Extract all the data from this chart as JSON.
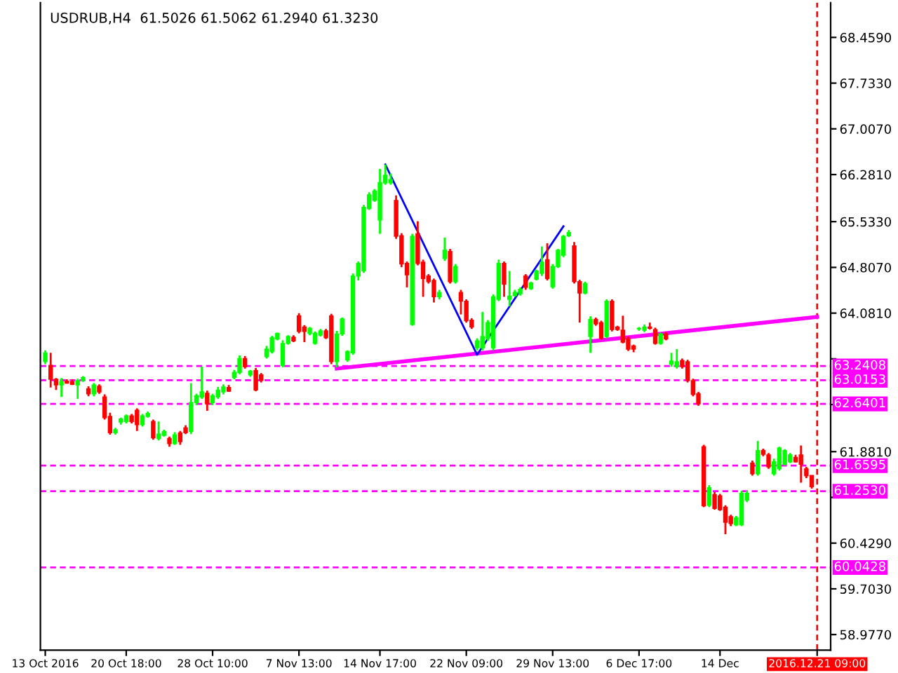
{
  "chart_data": {
    "type": "candlestick",
    "title": "USDRUB,H4  61.5026 61.5062 61.2940 61.3230",
    "categories": [
      "13 Oct 2016",
      null,
      null,
      null,
      null,
      null,
      null,
      null,
      null,
      null,
      null,
      null,
      null,
      null,
      null,
      "20 Oct 18:00",
      null,
      null,
      null,
      null,
      null,
      null,
      null,
      null,
      null,
      null,
      null,
      null,
      null,
      null,
      null,
      "28 Oct 10:00",
      null,
      null,
      null,
      null,
      null,
      null,
      null,
      null,
      null,
      null,
      null,
      null,
      null,
      null,
      null,
      "7 Nov 13:00",
      null,
      null,
      null,
      null,
      null,
      null,
      null,
      null,
      null,
      null,
      null,
      null,
      null,
      null,
      "14 Nov 17:00",
      null,
      null,
      null,
      null,
      null,
      null,
      null,
      null,
      null,
      null,
      null,
      null,
      null,
      null,
      null,
      "22 Nov 09:00",
      null,
      null,
      null,
      null,
      null,
      null,
      null,
      null,
      null,
      null,
      null,
      null,
      null,
      null,
      null,
      "29 Nov 13:00",
      null,
      null,
      null,
      null,
      null,
      null,
      null,
      null,
      null,
      null,
      null,
      null,
      null,
      null,
      null,
      "6 Dec 17:00",
      null,
      null,
      null,
      null,
      null,
      null,
      null,
      null,
      null,
      null,
      null,
      null,
      null,
      null,
      "14 Dec",
      null,
      null,
      null,
      null,
      null,
      null,
      null,
      null,
      null,
      null,
      null,
      null,
      null,
      null,
      null,
      null,
      null,
      "2016.12.21 09:00"
    ],
    "ohlc": [
      [
        63.31,
        63.49,
        63.27,
        63.45
      ],
      [
        63.25,
        63.45,
        62.9,
        63.03
      ],
      [
        63.03,
        63.05,
        62.86,
        62.94
      ],
      [
        62.94,
        63.05,
        62.75,
        62.99
      ],
      [
        63.0,
        63.03,
        62.96,
        62.97
      ],
      [
        62.99,
        63.03,
        62.94,
        62.95
      ],
      [
        62.94,
        63.04,
        62.72,
        63.01
      ],
      [
        63.01,
        63.08,
        62.99,
        63.06
      ],
      [
        62.88,
        62.92,
        62.76,
        62.8
      ],
      [
        62.8,
        62.97,
        62.76,
        62.94
      ],
      [
        62.92,
        62.95,
        62.8,
        62.83
      ],
      [
        62.75,
        62.79,
        62.39,
        62.42
      ],
      [
        62.44,
        62.5,
        62.15,
        62.18
      ],
      [
        62.18,
        62.26,
        62.15,
        62.23
      ],
      [
        62.35,
        62.42,
        62.31,
        62.4
      ],
      [
        62.36,
        62.47,
        62.33,
        62.45
      ],
      [
        62.45,
        62.48,
        62.33,
        62.36
      ],
      [
        62.54,
        62.57,
        62.21,
        62.31
      ],
      [
        62.31,
        62.48,
        62.28,
        62.45
      ],
      [
        62.44,
        62.52,
        62.42,
        62.49
      ],
      [
        62.36,
        62.39,
        62.07,
        62.1
      ],
      [
        62.09,
        62.36,
        62.06,
        62.16
      ],
      [
        62.14,
        62.23,
        62.12,
        62.2
      ],
      [
        62.09,
        62.12,
        61.96,
        62.01
      ],
      [
        62.01,
        62.19,
        61.99,
        62.15
      ],
      [
        62.18,
        62.21,
        61.99,
        62.04
      ],
      [
        62.26,
        62.3,
        62.16,
        62.18
      ],
      [
        62.2,
        62.97,
        62.16,
        62.66
      ],
      [
        62.66,
        62.8,
        62.62,
        62.77
      ],
      [
        62.75,
        63.23,
        62.72,
        62.83
      ],
      [
        62.81,
        62.85,
        62.53,
        62.64
      ],
      [
        62.66,
        62.8,
        62.62,
        62.77
      ],
      [
        62.75,
        62.91,
        62.72,
        62.86
      ],
      [
        62.83,
        62.95,
        62.79,
        62.91
      ],
      [
        62.9,
        62.94,
        62.83,
        62.84
      ],
      [
        63.06,
        63.18,
        63.03,
        63.14
      ],
      [
        63.14,
        63.41,
        63.11,
        63.36
      ],
      [
        63.36,
        63.4,
        63.2,
        63.23
      ],
      [
        63.1,
        63.18,
        63.07,
        63.16
      ],
      [
        63.17,
        63.21,
        62.84,
        62.86
      ],
      [
        63.1,
        63.13,
        62.98,
        63.01
      ],
      [
        63.39,
        63.56,
        63.36,
        63.51
      ],
      [
        63.47,
        63.72,
        63.44,
        63.69
      ],
      [
        63.67,
        63.77,
        63.65,
        63.76
      ],
      [
        63.25,
        63.65,
        63.22,
        63.6
      ],
      [
        63.6,
        63.73,
        63.58,
        63.71
      ],
      [
        63.7,
        63.73,
        63.62,
        63.64
      ],
      [
        64.04,
        64.08,
        63.76,
        63.79
      ],
      [
        63.86,
        63.89,
        63.62,
        63.79
      ],
      [
        63.76,
        63.86,
        63.73,
        63.84
      ],
      [
        63.6,
        63.79,
        63.58,
        63.76
      ],
      [
        63.73,
        63.83,
        63.71,
        63.8
      ],
      [
        63.8,
        63.83,
        63.67,
        63.69
      ],
      [
        64.04,
        64.07,
        63.27,
        63.31
      ],
      [
        63.31,
        63.8,
        63.22,
        63.75
      ],
      [
        63.75,
        64.01,
        63.72,
        63.99
      ],
      [
        63.34,
        63.49,
        63.31,
        63.47
      ],
      [
        63.45,
        64.71,
        63.42,
        64.67
      ],
      [
        64.67,
        64.9,
        64.6,
        64.87
      ],
      [
        64.75,
        65.8,
        64.72,
        65.76
      ],
      [
        65.74,
        66.0,
        65.72,
        65.96
      ],
      [
        65.87,
        66.05,
        65.85,
        66.02
      ],
      [
        65.56,
        66.37,
        65.34,
        66.15
      ],
      [
        66.15,
        66.44,
        66.12,
        66.27
      ],
      [
        66.15,
        66.3,
        66.12,
        66.2
      ],
      [
        65.87,
        65.95,
        65.26,
        65.3
      ],
      [
        65.31,
        65.35,
        64.81,
        64.86
      ],
      [
        64.87,
        64.9,
        64.49,
        64.69
      ],
      [
        63.9,
        65.34,
        63.88,
        65.3
      ],
      [
        65.34,
        65.54,
        64.84,
        64.87
      ],
      [
        64.89,
        64.93,
        64.34,
        64.63
      ],
      [
        64.67,
        64.7,
        64.55,
        64.58
      ],
      [
        64.6,
        64.63,
        64.25,
        64.34
      ],
      [
        64.34,
        64.45,
        64.3,
        64.41
      ],
      [
        64.95,
        65.28,
        64.91,
        65.08
      ],
      [
        65.06,
        65.1,
        64.55,
        64.58
      ],
      [
        64.58,
        64.86,
        64.55,
        64.82
      ],
      [
        64.41,
        64.45,
        64.06,
        64.27
      ],
      [
        64.27,
        64.3,
        63.93,
        63.96
      ],
      [
        63.97,
        64.0,
        63.83,
        63.86
      ],
      [
        63.53,
        63.68,
        63.49,
        63.64
      ],
      [
        63.53,
        64.1,
        63.49,
        63.71
      ],
      [
        63.68,
        63.97,
        63.64,
        63.93
      ],
      [
        63.53,
        64.38,
        63.49,
        64.34
      ],
      [
        64.3,
        64.93,
        64.27,
        64.87
      ],
      [
        64.87,
        64.9,
        64.34,
        64.54
      ],
      [
        64.3,
        64.75,
        64.19,
        64.35
      ],
      [
        64.36,
        64.45,
        64.34,
        64.41
      ],
      [
        64.39,
        64.49,
        64.36,
        64.46
      ],
      [
        64.67,
        64.7,
        64.45,
        64.49
      ],
      [
        64.47,
        64.58,
        64.45,
        64.56
      ],
      [
        64.62,
        64.77,
        64.6,
        64.75
      ],
      [
        64.71,
        65.14,
        64.67,
        64.89
      ],
      [
        64.93,
        65.19,
        64.6,
        64.63
      ],
      [
        64.5,
        64.86,
        64.47,
        64.82
      ],
      [
        64.82,
        65.1,
        64.8,
        65.08
      ],
      [
        65.0,
        65.32,
        64.97,
        65.3
      ],
      [
        65.31,
        65.4,
        65.29,
        65.36
      ],
      [
        65.15,
        65.21,
        64.55,
        64.58
      ],
      [
        64.58,
        64.61,
        63.93,
        64.4
      ],
      [
        64.4,
        64.58,
        64.38,
        64.55
      ],
      [
        63.71,
        64.03,
        63.45,
        63.98
      ],
      [
        63.98,
        64.01,
        63.88,
        63.91
      ],
      [
        63.93,
        63.96,
        63.66,
        63.68
      ],
      [
        63.71,
        64.3,
        63.68,
        64.27
      ],
      [
        64.27,
        64.3,
        63.79,
        63.82
      ],
      [
        63.86,
        63.88,
        63.8,
        63.82
      ],
      [
        63.81,
        64.04,
        63.6,
        63.62
      ],
      [
        63.67,
        63.71,
        63.48,
        63.51
      ],
      [
        63.56,
        63.58,
        63.46,
        63.51
      ],
      [
        63.83,
        63.86,
        63.8,
        63.84
      ],
      [
        63.81,
        63.9,
        63.78,
        63.86
      ],
      [
        63.86,
        63.93,
        63.82,
        63.84
      ],
      [
        63.82,
        63.85,
        63.58,
        63.6
      ],
      [
        63.6,
        63.77,
        63.58,
        63.75
      ],
      [
        63.75,
        63.78,
        63.65,
        63.67
      ],
      [
        63.27,
        63.45,
        63.23,
        63.32
      ],
      [
        63.23,
        63.51,
        63.2,
        63.31
      ],
      [
        63.33,
        63.36,
        63.2,
        63.23
      ],
      [
        63.31,
        63.34,
        62.98,
        63.01
      ],
      [
        63.01,
        63.04,
        62.76,
        62.79
      ],
      [
        62.8,
        62.83,
        62.61,
        62.64
      ],
      [
        61.96,
        61.99,
        61.0,
        61.02
      ],
      [
        61.03,
        61.35,
        61.0,
        61.31
      ],
      [
        61.2,
        61.24,
        60.96,
        60.98
      ],
      [
        61.18,
        61.21,
        60.94,
        60.96
      ],
      [
        61.0,
        61.03,
        60.57,
        60.76
      ],
      [
        60.85,
        60.88,
        60.7,
        60.74
      ],
      [
        60.72,
        60.86,
        60.7,
        60.83
      ],
      [
        60.72,
        61.26,
        60.7,
        61.22
      ],
      [
        61.11,
        61.26,
        61.08,
        61.22
      ],
      [
        61.7,
        61.74,
        61.5,
        61.53
      ],
      [
        61.53,
        62.05,
        61.5,
        61.9
      ],
      [
        61.9,
        61.93,
        61.81,
        61.84
      ],
      [
        61.83,
        61.86,
        61.61,
        61.64
      ],
      [
        61.53,
        61.77,
        61.5,
        61.72
      ],
      [
        61.61,
        61.96,
        61.58,
        61.94
      ],
      [
        61.68,
        61.92,
        61.66,
        61.9
      ],
      [
        61.72,
        61.86,
        61.7,
        61.83
      ],
      [
        61.79,
        61.83,
        61.71,
        61.72
      ],
      [
        61.83,
        61.98,
        61.39,
        61.68
      ],
      [
        61.61,
        61.64,
        61.46,
        61.5
      ],
      [
        61.5026,
        61.5062,
        61.294,
        61.323
      ],
      null
    ],
    "series": [
      {
        "type": "line",
        "color": "#ff00ff",
        "values": [
          null,
          null,
          null,
          null,
          null,
          null,
          null,
          null,
          null,
          null,
          null,
          null,
          null,
          null,
          null,
          null,
          null,
          null,
          null,
          null,
          null,
          null,
          null,
          null,
          null,
          null,
          null,
          null,
          null,
          null,
          null,
          null,
          null,
          null,
          null,
          null,
          null,
          null,
          null,
          null,
          null,
          null,
          null,
          null,
          null,
          null,
          null,
          null,
          null,
          null,
          null,
          null,
          null,
          null,
          63.2,
          null,
          null,
          null,
          null,
          null,
          null,
          null,
          null,
          null,
          null,
          null,
          null,
          null,
          null,
          null,
          null,
          null,
          null,
          null,
          null,
          null,
          null,
          null,
          null,
          null,
          null,
          null,
          null,
          null,
          null,
          null,
          null,
          null,
          null,
          null,
          null,
          null,
          null,
          null,
          null,
          null,
          null,
          null,
          null,
          null,
          null,
          null,
          null,
          null,
          null,
          null,
          null,
          null,
          null,
          null,
          null,
          null,
          null,
          null,
          null,
          null,
          null,
          null,
          null,
          null,
          null,
          null,
          null,
          null,
          null,
          null,
          null,
          null,
          null,
          null,
          null,
          null,
          null,
          null,
          null,
          null,
          null,
          null,
          null,
          null,
          null,
          null,
          null,
          64.02
        ]
      },
      {
        "type": "line",
        "color": "#0000ff",
        "values": [
          null,
          null,
          null,
          null,
          null,
          null,
          null,
          null,
          null,
          null,
          null,
          null,
          null,
          null,
          null,
          null,
          null,
          null,
          null,
          null,
          null,
          null,
          null,
          null,
          null,
          null,
          null,
          null,
          null,
          null,
          null,
          null,
          null,
          null,
          null,
          null,
          null,
          null,
          null,
          null,
          null,
          null,
          null,
          null,
          null,
          null,
          null,
          null,
          null,
          null,
          null,
          null,
          null,
          null,
          null,
          null,
          null,
          null,
          null,
          null,
          null,
          null,
          null,
          66.44,
          null,
          null,
          null,
          null,
          null,
          null,
          null,
          null,
          null,
          null,
          null,
          null,
          null,
          null,
          null,
          null,
          63.42,
          null,
          null,
          null,
          null,
          null,
          null,
          null,
          null,
          null,
          null,
          null,
          null,
          null,
          null,
          null,
          65.46,
          null,
          null,
          null,
          null,
          null,
          null,
          null,
          null,
          null,
          null,
          null,
          null,
          null,
          null,
          null,
          null,
          null,
          null,
          null,
          null,
          null,
          null,
          null,
          null,
          null,
          null,
          null,
          null,
          null,
          null,
          null,
          null,
          null,
          null,
          null,
          null,
          null,
          null,
          null,
          null,
          null,
          null,
          null,
          null,
          null,
          null,
          null
        ]
      }
    ],
    "ylim": [
      58.73,
      69.01
    ],
    "yticks": [
      {
        "value": 68.459,
        "label": "68.4590"
      },
      {
        "value": 67.733,
        "label": "67.7330"
      },
      {
        "value": 67.007,
        "label": "67.0070"
      },
      {
        "value": 66.281,
        "label": "66.2810"
      },
      {
        "value": 65.533,
        "label": "65.5330"
      },
      {
        "value": 64.807,
        "label": "64.8070"
      },
      {
        "value": 64.081,
        "label": "64.0810"
      },
      {
        "value": 63.355,
        "label": null
      },
      {
        "value": 62.629,
        "label": null
      },
      {
        "value": 61.881,
        "label": "61.8810"
      },
      {
        "value": 61.155,
        "label": null
      },
      {
        "value": 60.429,
        "label": "60.4290"
      },
      {
        "value": 59.703,
        "label": "59.7030"
      },
      {
        "value": 58.977,
        "label": "58.9770"
      }
    ],
    "ref_lines": [
      {
        "axis": "y",
        "value": 63.2408,
        "label": "63.2408",
        "color": "#ff00ff",
        "line_style": "dashed"
      },
      {
        "axis": "y",
        "value": 63.0153,
        "label": "63.0153",
        "color": "#ff00ff",
        "line_style": "dashed"
      },
      {
        "axis": "y",
        "value": 62.6401,
        "label": "62.6401",
        "color": "#ff00ff",
        "line_style": "dashed"
      },
      {
        "axis": "y",
        "value": 61.6595,
        "label": "61.6595",
        "color": "#ff00ff",
        "line_style": "dashed"
      },
      {
        "axis": "y",
        "value": 61.253,
        "label": "61.2530",
        "color": "#ff00ff",
        "line_style": "dashed"
      },
      {
        "axis": "y",
        "value": 60.0428,
        "label": "60.0428",
        "color": "#ff00ff",
        "line_style": "dashed"
      },
      {
        "axis": "x",
        "value": "2016.12.21 09:00",
        "color": "#ff0000",
        "line_style": "dashed"
      }
    ],
    "grid": false,
    "legend": false
  }
}
